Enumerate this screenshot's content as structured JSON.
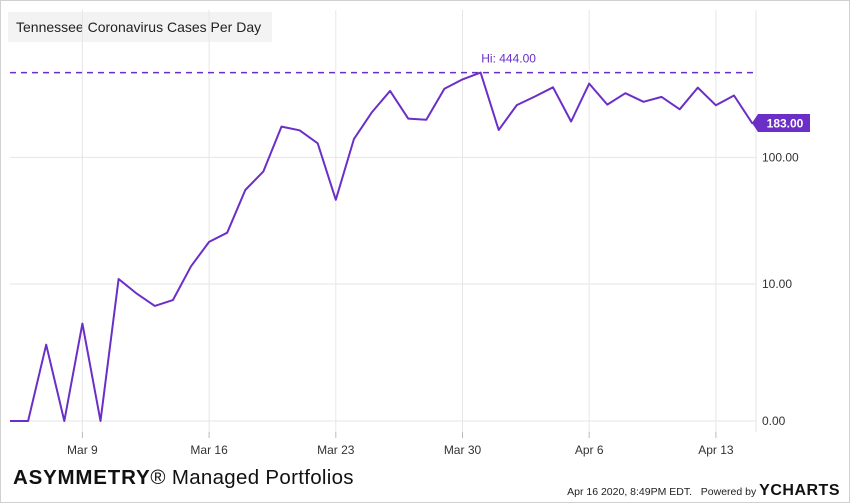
{
  "title": "Tennessee Coronavirus Cases Per Day",
  "footer": {
    "brand_bold": "ASYMMETRY",
    "brand_reg": "®",
    "brand_rest": " Managed Portfolios",
    "timestamp": "Apr 16 2020, 8:49PM EDT.",
    "powered_by": "Powered by",
    "logo_y": "Y",
    "logo_rest": "CHARTS"
  },
  "colors": {
    "series": "#6b2fc8",
    "grid": "#e6e6e6"
  },
  "chart_data": {
    "type": "line",
    "title": "Tennessee Coronavirus Cases Per Day",
    "y_scale": "log",
    "x_tick_labels": [
      "Mar 9",
      "Mar 16",
      "Mar 23",
      "Mar 30",
      "Apr 6",
      "Apr 13"
    ],
    "y_tick_labels": [
      "0.00",
      "10.00",
      "100.00"
    ],
    "high_label": "Hi: 444.00",
    "high_value": 444,
    "last_label": "183.00",
    "last_value": 183,
    "grid": true,
    "series": [
      {
        "x": [
          "Mar 5",
          "Mar 6",
          "Mar 7",
          "Mar 8",
          "Mar 9",
          "Mar 10",
          "Mar 11",
          "Mar 12",
          "Mar 13",
          "Mar 14",
          "Mar 15",
          "Mar 16",
          "Mar 17",
          "Mar 18",
          "Mar 19",
          "Mar 20",
          "Mar 21",
          "Mar 22",
          "Mar 23",
          "Mar 24",
          "Mar 25",
          "Mar 26",
          "Mar 27",
          "Mar 28",
          "Mar 29",
          "Mar 30",
          "Mar 31",
          "Apr 1",
          "Apr 2",
          "Apr 3",
          "Apr 4",
          "Apr 5",
          "Apr 6",
          "Apr 7",
          "Apr 8",
          "Apr 9",
          "Apr 10",
          "Apr 11",
          "Apr 12",
          "Apr 13",
          "Apr 14",
          "Apr 15",
          "Apr 16"
        ],
        "values": [
          0,
          0,
          2.8,
          0,
          4.5,
          0,
          11,
          8.3,
          6.5,
          7.3,
          14,
          22,
          26,
          56,
          78,
          172,
          161,
          128,
          47,
          138,
          222,
          322,
          198,
          194,
          334,
          394,
          444,
          162,
          251,
          292,
          343,
          188,
          366,
          253,
          309,
          266,
          290,
          233,
          341,
          250,
          297,
          183,
          183
        ]
      }
    ]
  }
}
